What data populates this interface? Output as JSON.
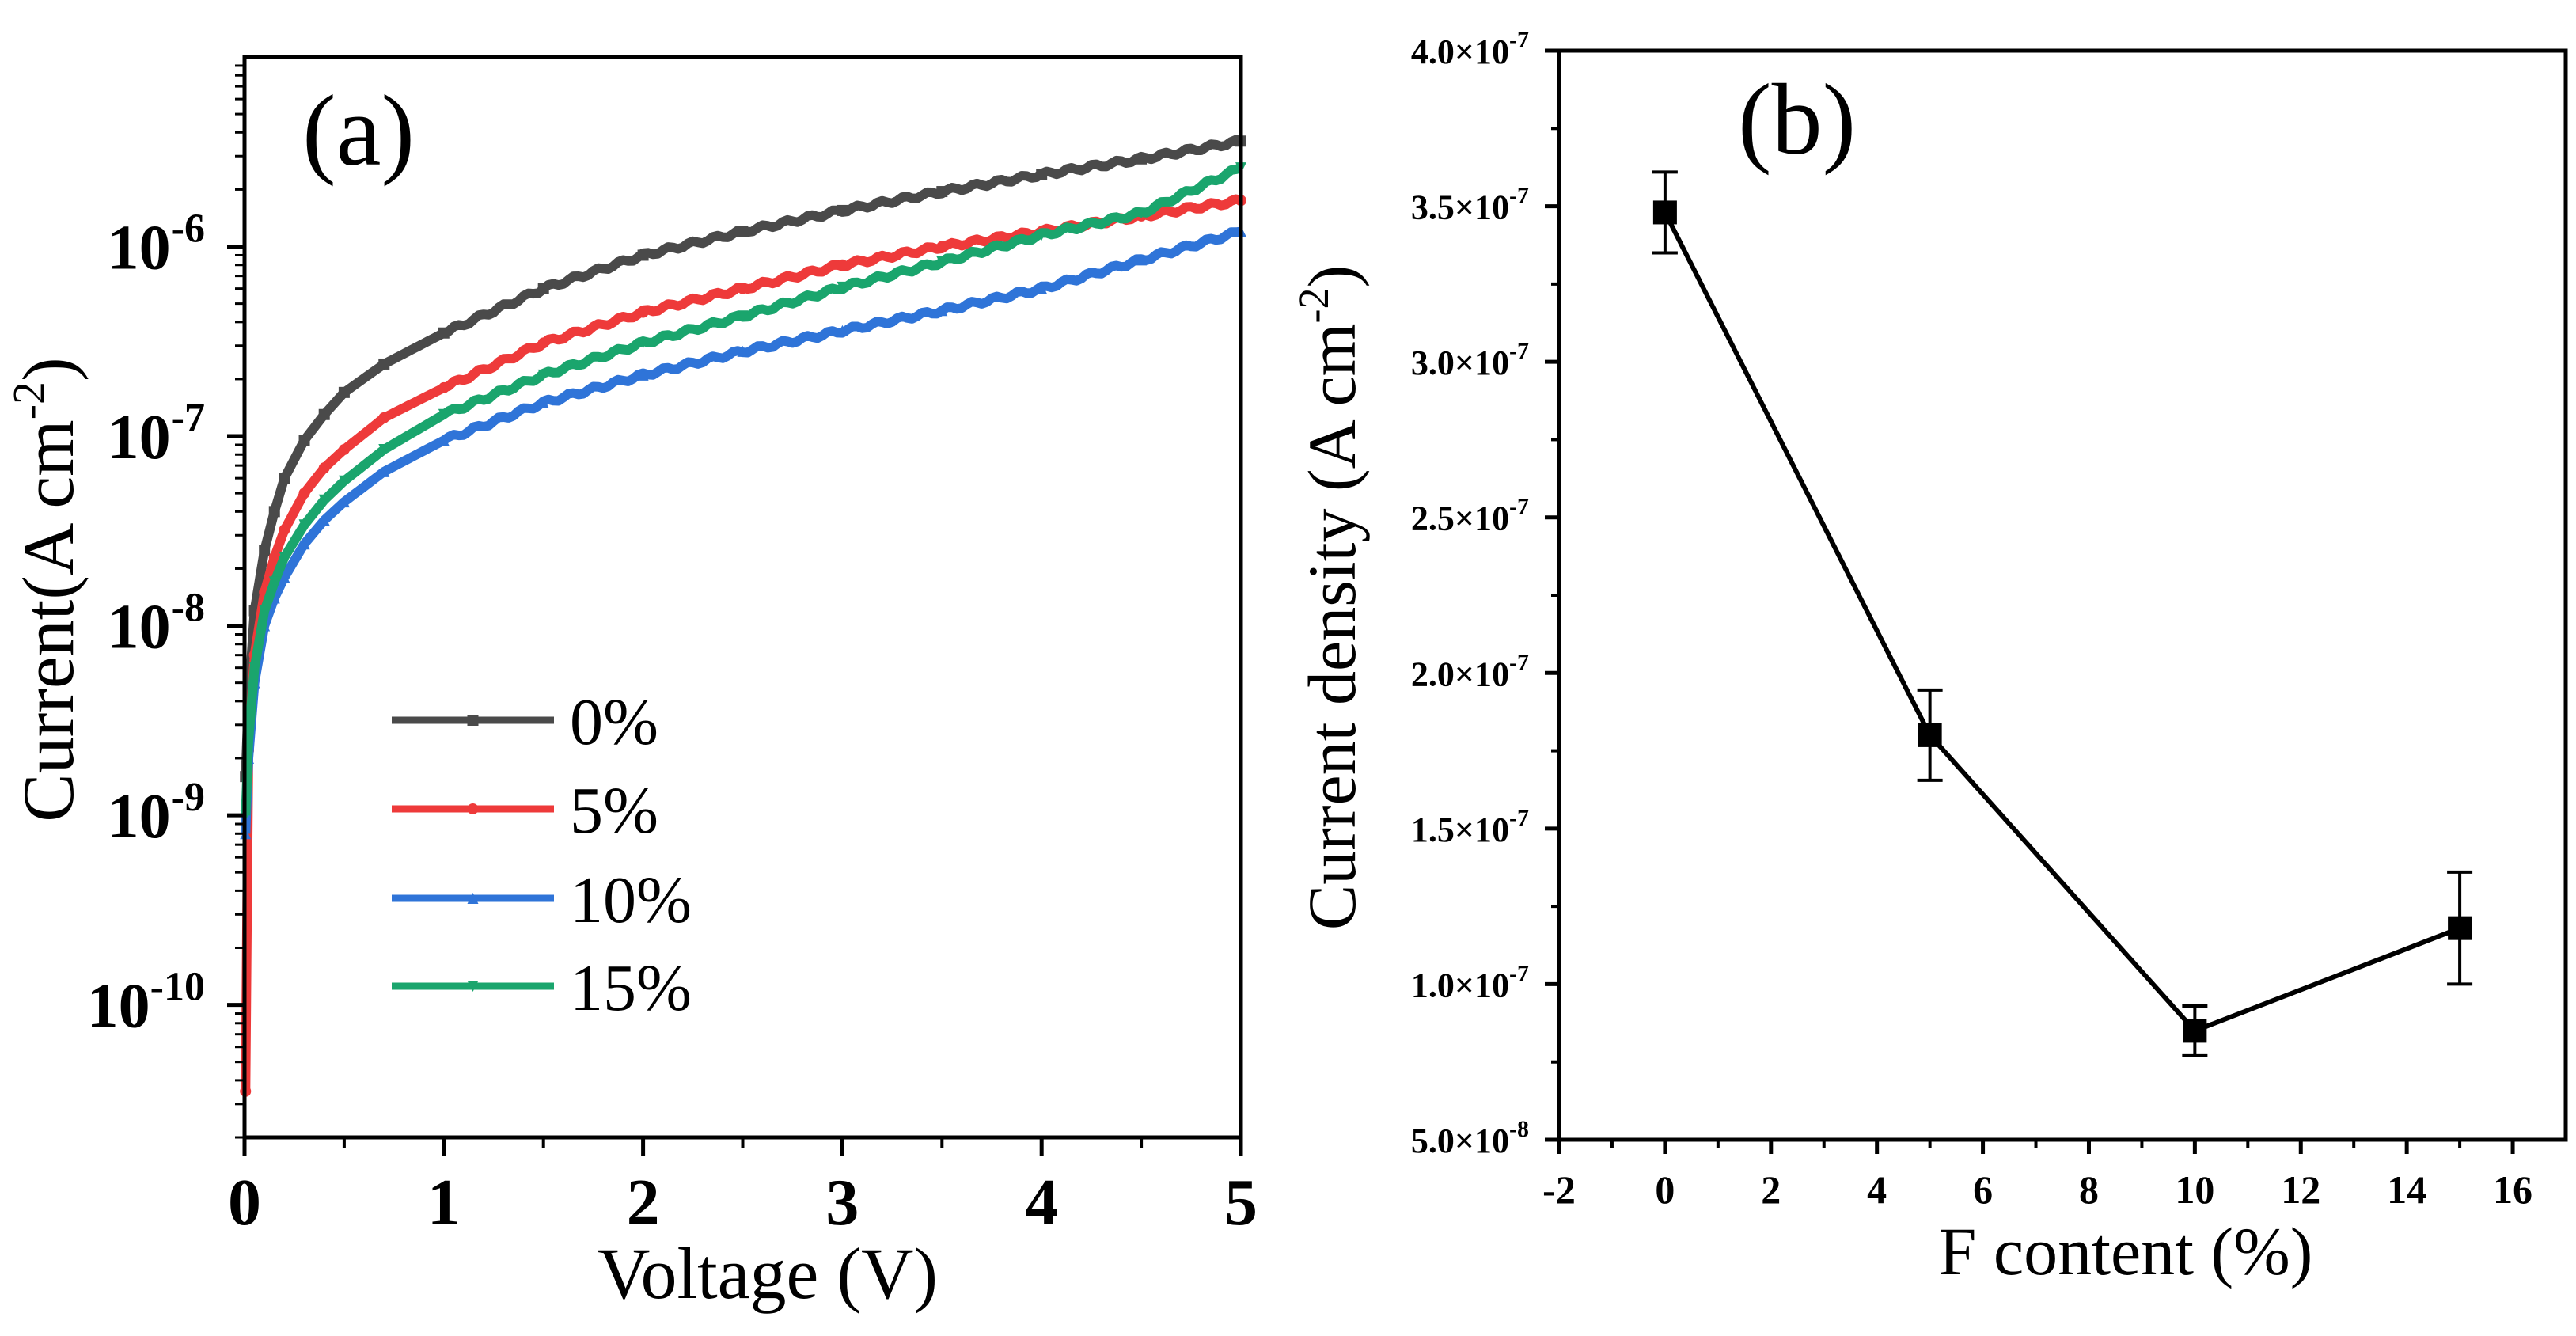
{
  "chart_data": [
    {
      "panel": "(a)",
      "type": "line",
      "xlabel": "Voltage (V)",
      "ylabel_main": "Current(A cm",
      "ylabel_sup": "-2",
      "ylabel_close": ")",
      "yscale": "log",
      "xlim": [
        0,
        5
      ],
      "ylim": [
        2e-11,
        1e-05
      ],
      "x_ticks": [
        0,
        1,
        2,
        3,
        4,
        5
      ],
      "x_tick_labels": [
        "0",
        "1",
        "2",
        "3",
        "4",
        "5"
      ],
      "y_ticks": [
        1e-10,
        1e-09,
        1e-08,
        1e-07,
        1e-06
      ],
      "y_tick_labels": [
        {
          "base": "10",
          "exp": "-10"
        },
        {
          "base": "10",
          "exp": "-9"
        },
        {
          "base": "10",
          "exp": "-8"
        },
        {
          "base": "10",
          "exp": "-7"
        },
        {
          "base": "10",
          "exp": "-6"
        }
      ],
      "legend_position": "center",
      "series": [
        {
          "name": "0%",
          "color": "#4a4a4a",
          "marker": "square",
          "x": [
            0.005,
            0.02,
            0.05,
            0.1,
            0.15,
            0.2,
            0.3,
            0.4,
            0.5,
            0.7,
            1.0,
            1.5,
            2.0,
            2.5,
            3.0,
            3.5,
            4.0,
            4.5,
            5.0
          ],
          "y": [
            1.6e-09,
            4e-09,
            1.2e-08,
            2.5e-08,
            4e-08,
            6e-08,
            9.5e-08,
            1.3e-07,
            1.7e-07,
            2.4e-07,
            3.5e-07,
            6e-07,
            9e-07,
            1.2e-06,
            1.55e-06,
            1.95e-06,
            2.4e-06,
            2.9e-06,
            3.6e-06
          ]
        },
        {
          "name": "5%",
          "color": "#ee3a3a",
          "marker": "circle",
          "x": [
            0.005,
            0.02,
            0.05,
            0.1,
            0.15,
            0.2,
            0.3,
            0.4,
            0.5,
            0.7,
            1.0,
            1.5,
            2.0,
            2.5,
            3.0,
            3.5,
            4.0,
            4.5,
            5.0
          ],
          "y": [
            3.5e-11,
            2.2e-09,
            7e-09,
            1.5e-08,
            2.3e-08,
            3.2e-08,
            5e-08,
            6.8e-08,
            8.5e-08,
            1.25e-07,
            1.8e-07,
            3.1e-07,
            4.5e-07,
            6e-07,
            8e-07,
            1e-06,
            1.2e-06,
            1.45e-06,
            1.75e-06
          ]
        },
        {
          "name": "10%",
          "color": "#2f74d8",
          "marker": "triangle-up",
          "x": [
            0.005,
            0.02,
            0.05,
            0.1,
            0.15,
            0.2,
            0.3,
            0.4,
            0.5,
            0.7,
            1.0,
            1.5,
            2.0,
            2.5,
            3.0,
            3.5,
            4.0,
            4.5,
            5.0
          ],
          "y": [
            8e-10,
            2e-09,
            5e-09,
            1e-08,
            1.4e-08,
            1.8e-08,
            2.7e-08,
            3.6e-08,
            4.5e-08,
            6.5e-08,
            9.5e-08,
            1.5e-07,
            2.1e-07,
            2.8e-07,
            3.6e-07,
            4.6e-07,
            6e-07,
            8.5e-07,
            1.2e-06
          ]
        },
        {
          "name": "15%",
          "color": "#1aa56d",
          "marker": "triangle-down",
          "x": [
            0.005,
            0.02,
            0.05,
            0.1,
            0.15,
            0.2,
            0.3,
            0.4,
            0.5,
            0.7,
            1.0,
            1.5,
            2.0,
            2.5,
            3.0,
            3.5,
            4.0,
            4.5,
            5.0
          ],
          "y": [
            1e-09,
            2.5e-09,
            6e-09,
            1.2e-08,
            1.7e-08,
            2.3e-08,
            3.4e-08,
            4.6e-08,
            5.8e-08,
            8.5e-08,
            1.3e-07,
            2.1e-07,
            3.1e-07,
            4.3e-07,
            6.1e-07,
            8.3e-07,
            1.15e-06,
            1.5e-06,
            2.6e-06
          ]
        }
      ]
    },
    {
      "panel": "(b)",
      "type": "line",
      "xlabel": "F content (%)",
      "ylabel_main": "Current density (A cm",
      "ylabel_sup": "-2",
      "ylabel_close": ")",
      "xlim": [
        -2,
        17
      ],
      "ylim": [
        5e-08,
        4e-07
      ],
      "x_ticks": [
        -2,
        0,
        2,
        4,
        6,
        8,
        10,
        12,
        14,
        16
      ],
      "x_tick_labels": [
        "-2",
        "0",
        "2",
        "4",
        "6",
        "8",
        "10",
        "12",
        "14",
        "16"
      ],
      "y_ticks": [
        5e-08,
        1e-07,
        1.5e-07,
        2e-07,
        2.5e-07,
        3e-07,
        3.5e-07,
        4e-07
      ],
      "y_tick_labels": [
        {
          "base": "5.0×10",
          "exp": "-8"
        },
        {
          "base": "1.0×10",
          "exp": "-7"
        },
        {
          "base": "1.5×10",
          "exp": "-7"
        },
        {
          "base": "2.0×10",
          "exp": "-7"
        },
        {
          "base": "2.5×10",
          "exp": "-7"
        },
        {
          "base": "3.0×10",
          "exp": "-7"
        },
        {
          "base": "3.5×10",
          "exp": "-7"
        },
        {
          "base": "4.0×10",
          "exp": "-7"
        }
      ],
      "series": [
        {
          "name": "Current density",
          "color": "#000000",
          "marker": "square",
          "x": [
            0,
            5,
            10,
            15
          ],
          "y": [
            3.48e-07,
            1.8e-07,
            8.5e-08,
            1.18e-07
          ],
          "error": [
            1.3e-08,
            1.45e-08,
            8e-09,
            1.8e-08
          ]
        }
      ]
    }
  ]
}
